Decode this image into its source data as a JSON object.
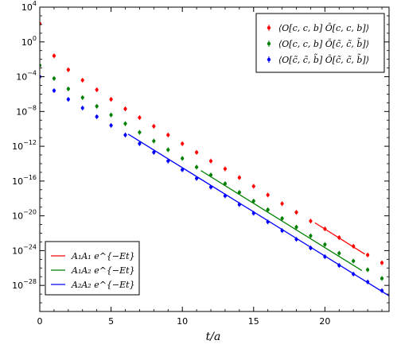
{
  "chart_data": {
    "type": "scatter",
    "xlabel": "t/a",
    "ylabel": "",
    "xlim": [
      0,
      24.5
    ],
    "ylim_log10": [
      -31,
      4
    ],
    "yscale": "log",
    "grid": false,
    "x_ticks": [
      "0",
      "5",
      "10",
      "15",
      "20"
    ],
    "y_ticks": [
      {
        "base": "10",
        "exp": "4",
        "log": 4
      },
      {
        "base": "10",
        "exp": "0",
        "log": 0
      },
      {
        "base": "10",
        "exp": "−4",
        "log": -4
      },
      {
        "base": "10",
        "exp": "−8",
        "log": -8
      },
      {
        "base": "10",
        "exp": "−12",
        "log": -12
      },
      {
        "base": "10",
        "exp": "−16",
        "log": -16
      },
      {
        "base": "10",
        "exp": "−20",
        "log": -20
      },
      {
        "base": "10",
        "exp": "−24",
        "log": -24
      },
      {
        "base": "10",
        "exp": "−28",
        "log": -28
      }
    ],
    "legend_top": {
      "placement": "top-right",
      "entries": [
        {
          "label": "⟨O[c, c, b] Ō[c, c, b]⟩",
          "color": "#ff0000"
        },
        {
          "label": "⟨O[c, c, b] Ō[c̃, c̃, b̃]⟩",
          "color": "#008000"
        },
        {
          "label": "⟨O[c̃, c̃, b̃] Ō[c̃, c̃, b̃]⟩",
          "color": "#0000ff"
        }
      ]
    },
    "legend_bottom": {
      "placement": "bottom-left",
      "entries": [
        {
          "label": "A₁A₁ e^{−Et}",
          "color": "#ff0000"
        },
        {
          "label": "A₁A₂ e^{−Et}",
          "color": "#008000"
        },
        {
          "label": "A₂A₂ e^{−Et}",
          "color": "#0000ff"
        }
      ]
    },
    "series": [
      {
        "name": "⟨O[c, c, b] Ō[c, c, b]⟩",
        "color": "#ff0000",
        "x": [
          0,
          1,
          2,
          3,
          4,
          5,
          6,
          7,
          8,
          9,
          10,
          11,
          12,
          13,
          14,
          15,
          16,
          17,
          18,
          19,
          20,
          21,
          22,
          23,
          24
        ],
        "log10_y": [
          2.1,
          -1.6,
          -3.2,
          -4.4,
          -5.5,
          -6.6,
          -7.7,
          -8.7,
          -9.7,
          -10.7,
          -11.7,
          -12.7,
          -13.7,
          -14.6,
          -15.6,
          -16.6,
          -17.6,
          -18.6,
          -19.6,
          -20.6,
          -21.5,
          -22.5,
          -23.5,
          -24.5,
          -25.4
        ]
      },
      {
        "name": "⟨O[c, c, b] Ō[c̃, c̃, b̃]⟩",
        "color": "#008000",
        "x": [
          0,
          1,
          2,
          3,
          4,
          5,
          6,
          7,
          8,
          9,
          10,
          11,
          12,
          13,
          14,
          15,
          16,
          17,
          18,
          19,
          20,
          21,
          22,
          23,
          24
        ],
        "log10_y": [
          -2.7,
          -4.2,
          -5.4,
          -6.4,
          -7.4,
          -8.4,
          -9.4,
          -10.4,
          -11.4,
          -12.4,
          -13.4,
          -14.4,
          -15.3,
          -16.3,
          -17.3,
          -18.3,
          -19.3,
          -20.3,
          -21.3,
          -22.3,
          -23.3,
          -24.3,
          -25.2,
          -26.2,
          -27.2
        ]
      },
      {
        "name": "⟨O[c̃, c̃, b̃] Ō[c̃, c̃, b̃]⟩",
        "color": "#0000ff",
        "x": [
          0,
          1,
          2,
          3,
          4,
          5,
          6,
          7,
          8,
          9,
          10,
          11,
          12,
          13,
          14,
          15,
          16,
          17,
          18,
          19,
          20,
          21,
          22,
          23,
          24
        ],
        "log10_y": [
          -4.0,
          -5.6,
          -6.6,
          -7.6,
          -8.6,
          -9.6,
          -10.7,
          -11.7,
          -12.7,
          -13.7,
          -14.7,
          -15.7,
          -16.7,
          -17.7,
          -18.7,
          -19.7,
          -20.7,
          -21.7,
          -22.7,
          -23.7,
          -24.7,
          -25.7,
          -26.7,
          -27.6,
          -28.6
        ]
      }
    ],
    "fits": [
      {
        "name": "A₁A₁ e^{−Et}",
        "color": "#ff0000",
        "x_range": [
          19.3,
          22.8
        ],
        "log10_y_at": [
          -20.8,
          -24.4
        ]
      },
      {
        "name": "A₁A₂ e^{−Et}",
        "color": "#008000",
        "x_range": [
          11.3,
          22.6
        ],
        "log10_y_at": [
          -14.8,
          -26.3
        ]
      },
      {
        "name": "A₂A₂ e^{−Et}",
        "color": "#0000ff",
        "x_range": [
          6.2,
          24.5
        ],
        "log10_y_at": [
          -10.6,
          -29.2
        ]
      }
    ]
  }
}
